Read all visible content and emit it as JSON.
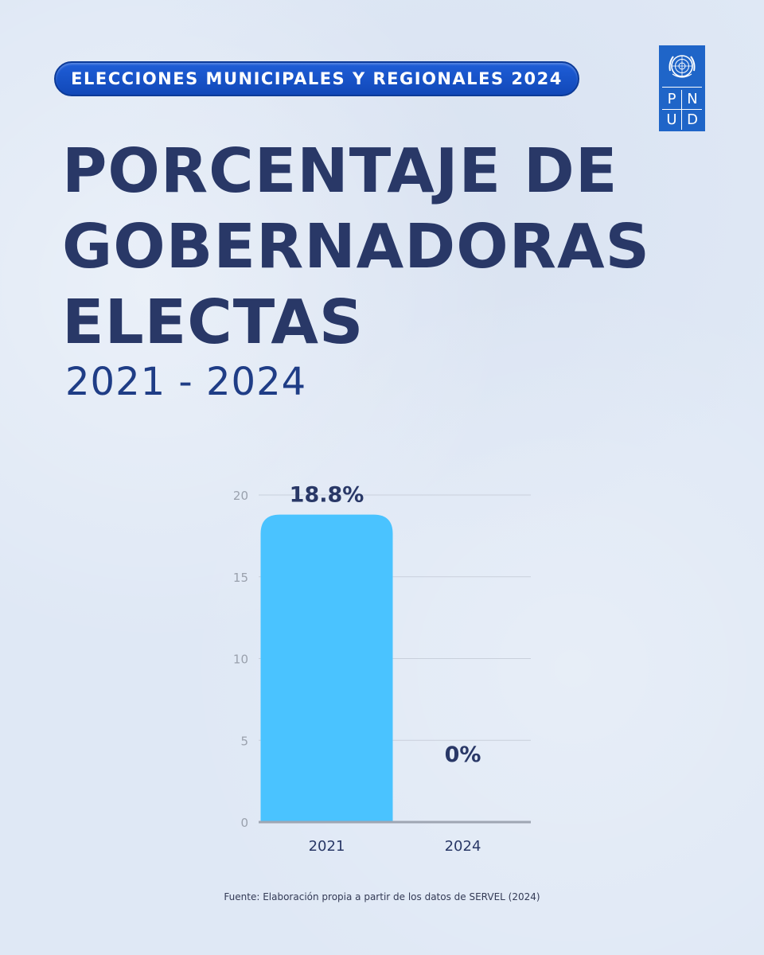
{
  "header": {
    "pill_label": "ELECCIONES MUNICIPALES Y REGIONALES 2024",
    "title_lines": [
      "PORCENTAJE DE",
      "GOBERNADORAS",
      "ELECTAS"
    ],
    "subtitle": "2021 - 2024"
  },
  "logo": {
    "letters": [
      "P",
      "N",
      "U",
      "D"
    ],
    "icon": "un-emblem-icon",
    "color": "#1f65c8"
  },
  "chart_data": {
    "type": "bar",
    "categories": [
      "2021",
      "2024"
    ],
    "values": [
      18.8,
      0
    ],
    "data_labels": [
      "18.8%",
      "0%"
    ],
    "ylim": [
      0,
      20
    ],
    "yticks": [
      "0",
      "5",
      "10",
      "15",
      "20"
    ],
    "bar_color": "#4ac3ff",
    "grid": true
  },
  "footer": {
    "source": "Fuente: Elaboración propia a partir de los datos de SERVEL (2024)"
  },
  "colors": {
    "title": "#293867",
    "subtitle": "#1f3d86",
    "pill": "#1553c6",
    "background": "#dfe8f5"
  }
}
